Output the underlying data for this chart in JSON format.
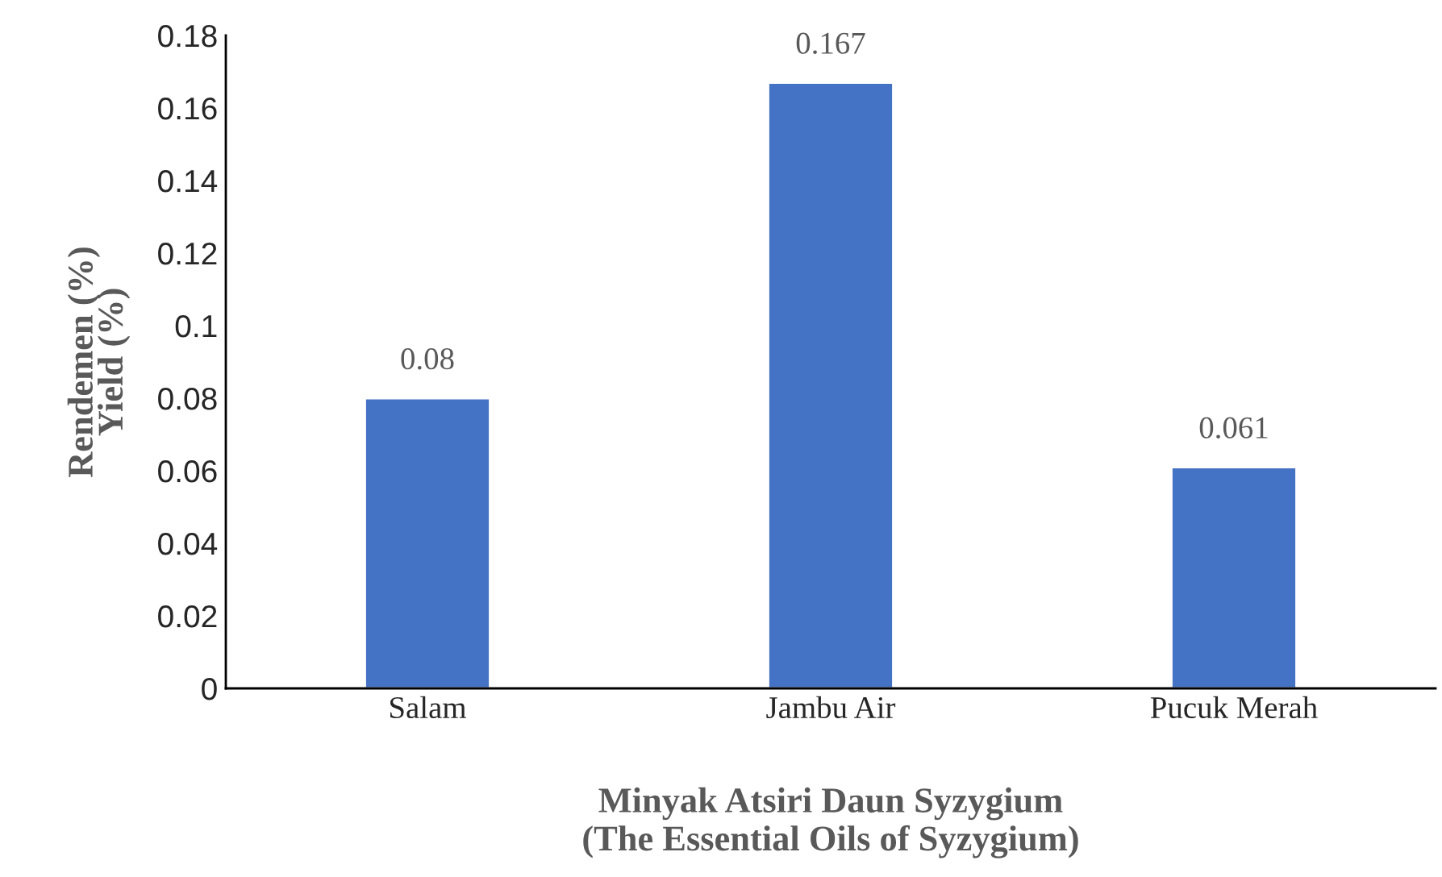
{
  "chart_data": {
    "type": "bar",
    "xlabel": "Minyak Atsiri Daun Syzygium\n(The Essential Oils of Syzygium)",
    "ylabel": "Rendemen (%)\nYield (%)",
    "categories": [
      "Salam",
      "Jambu Air",
      "Pucuk Merah"
    ],
    "values": [
      0.08,
      0.167,
      0.061
    ],
    "color": "#4472c4",
    "ylim": [
      0,
      0.18
    ],
    "yticks": [
      0,
      0.02,
      0.04,
      0.06,
      0.08,
      0.1,
      0.12,
      0.14,
      0.16,
      0.18
    ],
    "data_labels": true,
    "grid": false,
    "legend": false
  }
}
